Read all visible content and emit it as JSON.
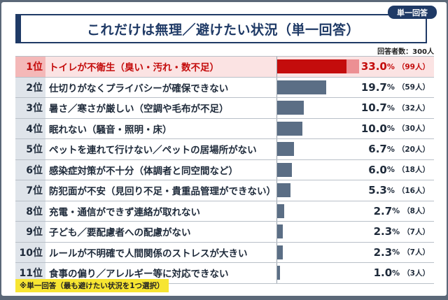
{
  "badge": "単一回答",
  "title": "これだけは無理／避けたい状況（単一回答）",
  "respondents": "回答者数：300人",
  "colors": {
    "highlight": "#c40c0c",
    "bar": "#5b6e85",
    "title": "#1f3a66",
    "note_bg": "#f7e532"
  },
  "chart_data": {
    "type": "bar",
    "orientation": "horizontal",
    "title": "これだけは無理／避けたい状況（単一回答）",
    "unit": "%",
    "rows": [
      {
        "rank": "1位",
        "label": "トイレが不衛生（臭い・汚れ・数不足）",
        "value": 33.0,
        "pct": "33.0",
        "count": "（99人）"
      },
      {
        "rank": "2位",
        "label": "仕切りがなくプライバシーが確保できない",
        "value": 19.7,
        "pct": "19.7",
        "count": "（59人）"
      },
      {
        "rank": "3位",
        "label": "暑さ／寒さが厳しい（空調や毛布が不足）",
        "value": 10.7,
        "pct": "10.7",
        "count": "（32人）"
      },
      {
        "rank": "4位",
        "label": "眠れない（騒音・照明・床）",
        "value": 10.0,
        "pct": "10.0",
        "count": "（30人）"
      },
      {
        "rank": "5位",
        "label": "ペットを連れて行けない／ペットの居場所がない",
        "value": 6.7,
        "pct": "6.7",
        "count": "（20人）"
      },
      {
        "rank": "6位",
        "label": "感染症対策が不十分（体調者と同空間など）",
        "value": 6.0,
        "pct": "6.0",
        "count": "（18人）"
      },
      {
        "rank": "7位",
        "label": "防犯面が不安（見回り不足・貴重品管理ができない）",
        "value": 5.3,
        "pct": "5.3",
        "count": "（16人）"
      },
      {
        "rank": "8位",
        "label": "充電・通信ができず連絡が取れない",
        "value": 2.7,
        "pct": "2.7",
        "count": "（8人）"
      },
      {
        "rank": "9位",
        "label": "子ども／要配慮者への配慮がない",
        "value": 2.3,
        "pct": "2.3",
        "count": "（7人）"
      },
      {
        "rank": "10位",
        "label": "ルールが不明確で人間関係のストレスが大きい",
        "value": 2.3,
        "pct": "2.3",
        "count": "（7人）"
      },
      {
        "rank": "11位",
        "label": "食事の偏り／アレルギー等に対応できない",
        "value": 1.0,
        "pct": "1.0",
        "count": "（3人）"
      }
    ],
    "pct_sign": "%"
  },
  "note": "※単一回答（最も避けたい状況を1つ選択）"
}
